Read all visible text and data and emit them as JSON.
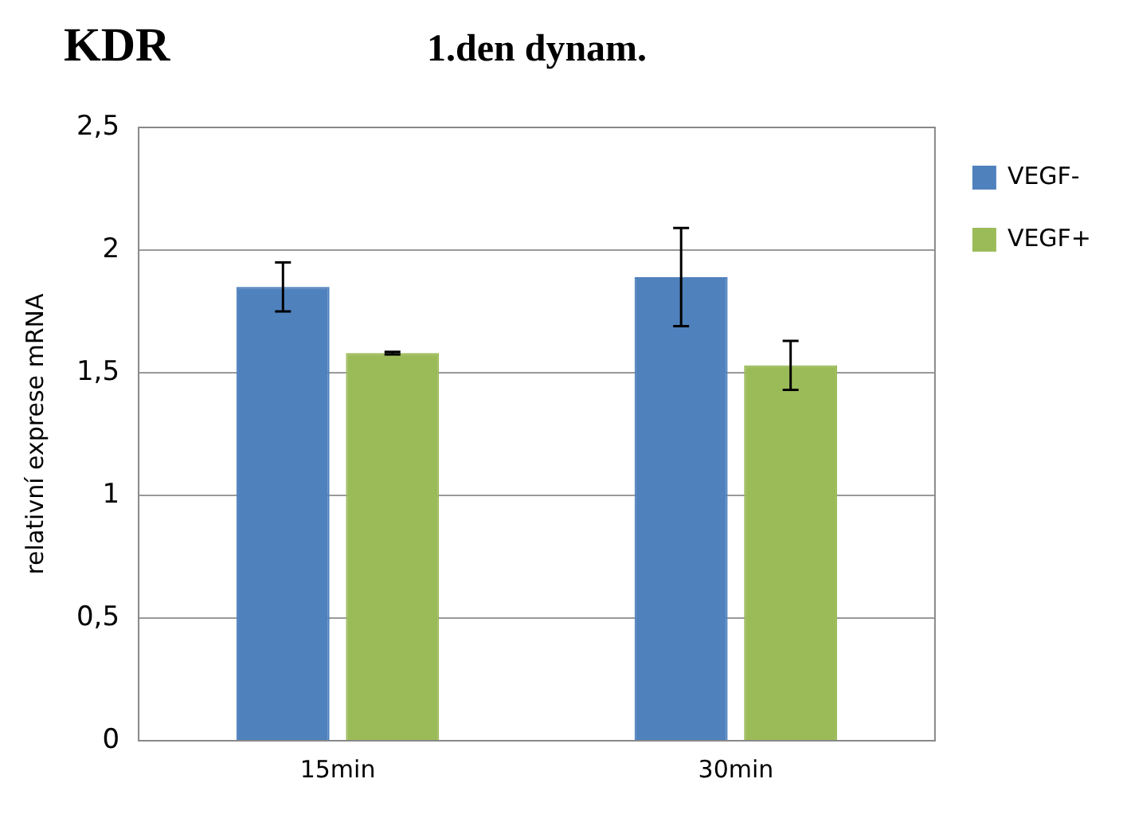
{
  "chart_data": {
    "type": "bar",
    "title": "KDR",
    "subtitle": "1.den dynam.",
    "ylabel": "relativní exprese mRNA",
    "categories": [
      "15min",
      "30min"
    ],
    "series": [
      {
        "name": "VEGF-",
        "color": "#4f81bd",
        "values": [
          1.85,
          1.89
        ],
        "errors": [
          0.1,
          0.2
        ]
      },
      {
        "name": "VEGF+",
        "color": "#9bbb59",
        "values": [
          1.58,
          1.53
        ],
        "errors": [
          0.005,
          0.1
        ]
      }
    ],
    "ylim": [
      0,
      2.5
    ],
    "yticks": [
      {
        "value": 0,
        "label": "0"
      },
      {
        "value": 0.5,
        "label": "0,5"
      },
      {
        "value": 1,
        "label": "1"
      },
      {
        "value": 1.5,
        "label": "1,5"
      },
      {
        "value": 2,
        "label": "2"
      },
      {
        "value": 2.5,
        "label": "2,5"
      }
    ],
    "grid": "y",
    "legend": "top right"
  }
}
